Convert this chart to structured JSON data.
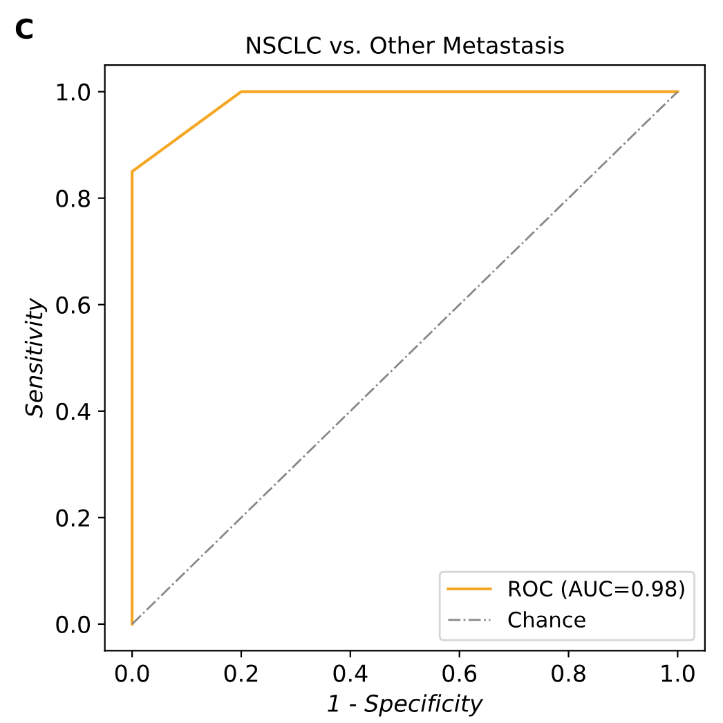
{
  "chart_data": {
    "type": "line",
    "title": "NSCLC vs. Other Metastasis",
    "xlabel": "1 - Specificity",
    "ylabel": "Sensitivity",
    "annotations": [
      "C"
    ],
    "series": [
      {
        "name": "ROC (AUC=0.98)",
        "color": "#f5a623",
        "x": [
          0,
          0,
          0.2,
          1.0
        ],
        "values": [
          0,
          0.85,
          1.0,
          1.0
        ],
        "line_style": "solid"
      },
      {
        "name": "Chance",
        "color": "#888888",
        "x": [
          0,
          1
        ],
        "values": [
          0,
          1
        ],
        "line_style": "dashdot"
      }
    ],
    "xlim": [
      -0.05,
      1.05
    ],
    "ylim": [
      -0.05,
      1.05
    ],
    "xticks": [
      {
        "value": 0,
        "label": "0.0"
      },
      0.2,
      0.4,
      0.6,
      0.8,
      {
        "value": 1,
        "label": "1.0"
      }
    ],
    "yticks": [
      {
        "value": 0,
        "label": "0.0"
      },
      0.2,
      0.4,
      0.6,
      0.8,
      {
        "value": 1,
        "label": "1.0"
      }
    ],
    "grid": false,
    "legend": "bottom right"
  }
}
